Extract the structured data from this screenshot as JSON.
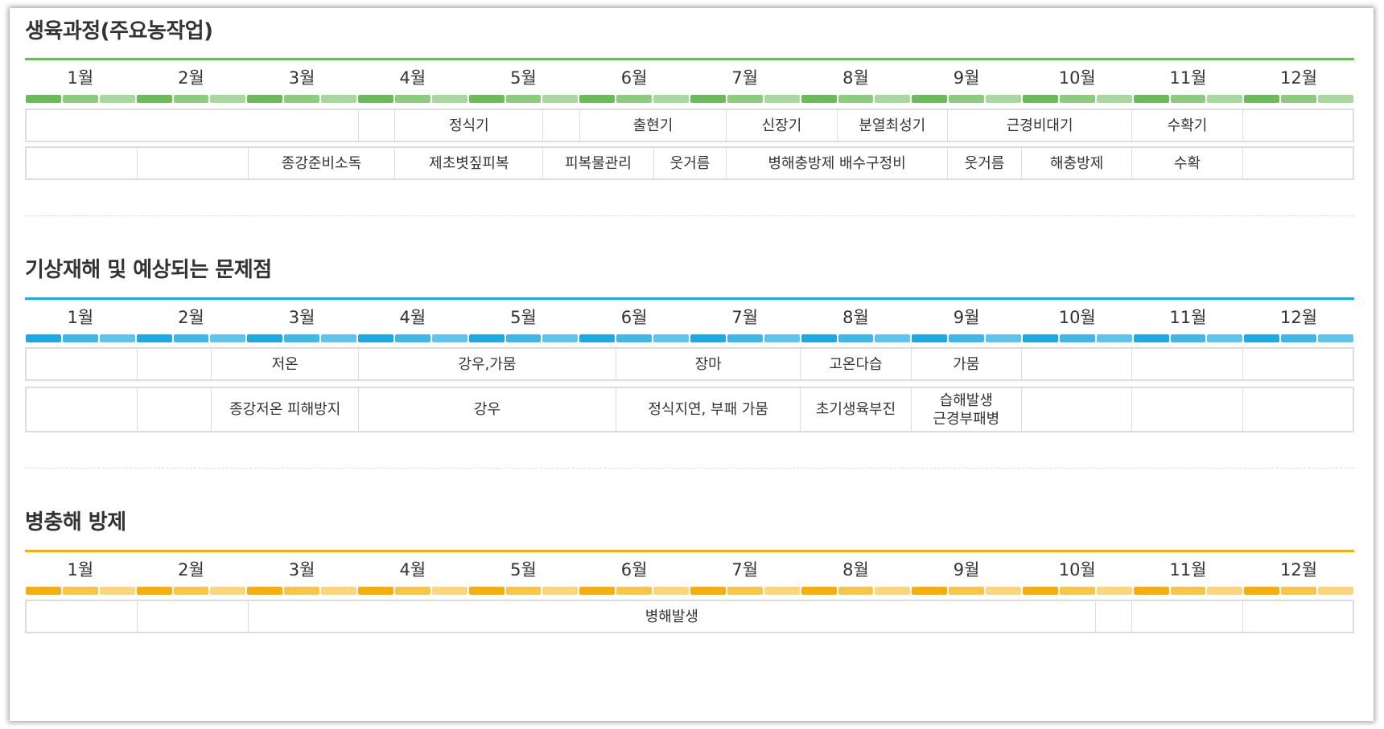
{
  "months": [
    "1월",
    "2월",
    "3월",
    "4월",
    "5월",
    "6월",
    "7월",
    "8월",
    "9월",
    "10월",
    "11월",
    "12월"
  ],
  "sections": [
    {
      "title": "생육과정(주요농작업)",
      "colors": {
        "rule": "#6cbb5a",
        "dark": "#6cbb5a",
        "mid": "#8dcc7e",
        "light": "#a9d89c"
      },
      "rows": [
        [
          {
            "span": [
              0,
              3
            ],
            "text": ""
          },
          {
            "span": [
              3,
              3.33
            ],
            "text": ""
          },
          {
            "span": [
              3.33,
              4.67
            ],
            "text": "정식기"
          },
          {
            "span": [
              4.67,
              5
            ],
            "text": ""
          },
          {
            "span": [
              5,
              6.33
            ],
            "text": "출현기"
          },
          {
            "span": [
              6.33,
              7.33
            ],
            "text": "신장기"
          },
          {
            "span": [
              7.33,
              8.33
            ],
            "text": "분열최성기"
          },
          {
            "span": [
              8.33,
              10
            ],
            "text": "근경비대기"
          },
          {
            "span": [
              10,
              11
            ],
            "text": "수확기"
          },
          {
            "span": [
              11,
              12
            ],
            "text": ""
          }
        ],
        [
          {
            "span": [
              0,
              1
            ],
            "text": ""
          },
          {
            "span": [
              1,
              2
            ],
            "text": ""
          },
          {
            "span": [
              2,
              3.33
            ],
            "text": "종강준비소독"
          },
          {
            "span": [
              3.33,
              4.67
            ],
            "text": "제초볏짚피복"
          },
          {
            "span": [
              4.67,
              5.67
            ],
            "text": "피복물관리"
          },
          {
            "span": [
              5.67,
              6.33
            ],
            "text": "웃거름"
          },
          {
            "span": [
              6.33,
              8.33
            ],
            "text": "병해충방제 배수구정비"
          },
          {
            "span": [
              8.33,
              9
            ],
            "text": "웃거름"
          },
          {
            "span": [
              9,
              10
            ],
            "text": "해충방제"
          },
          {
            "span": [
              10,
              11
            ],
            "text": "수확"
          },
          {
            "span": [
              11,
              12
            ],
            "text": ""
          }
        ]
      ]
    },
    {
      "title": "기상재해 및 예상되는 문제점",
      "colors": {
        "rule": "#1ea9e1",
        "dark": "#1ea9e1",
        "mid": "#40b7e6",
        "light": "#5fc4ec"
      },
      "rows": [
        [
          {
            "span": [
              0,
              1
            ],
            "text": ""
          },
          {
            "span": [
              1,
              1.67
            ],
            "text": ""
          },
          {
            "span": [
              1.67,
              3
            ],
            "text": "저온"
          },
          {
            "span": [
              3,
              5.33
            ],
            "text": "강우,가뭄"
          },
          {
            "span": [
              5.33,
              7
            ],
            "text": "장마"
          },
          {
            "span": [
              7,
              8
            ],
            "text": "고온다습"
          },
          {
            "span": [
              8,
              9
            ],
            "text": "가뭄"
          },
          {
            "span": [
              9,
              10
            ],
            "text": ""
          },
          {
            "span": [
              10,
              11
            ],
            "text": ""
          },
          {
            "span": [
              11,
              12
            ],
            "text": ""
          }
        ],
        [
          {
            "span": [
              0,
              1
            ],
            "text": ""
          },
          {
            "span": [
              1,
              1.67
            ],
            "text": ""
          },
          {
            "span": [
              1.67,
              3
            ],
            "text": "종강저온 피해방지"
          },
          {
            "span": [
              3,
              5.33
            ],
            "text": "강우"
          },
          {
            "span": [
              5.33,
              7
            ],
            "text": "정식지연, 부패 가뭄"
          },
          {
            "span": [
              7,
              8
            ],
            "text": "초기생육부진"
          },
          {
            "span": [
              8,
              9
            ],
            "text": "습해발생\n근경부패병"
          },
          {
            "span": [
              9,
              10
            ],
            "text": ""
          },
          {
            "span": [
              10,
              11
            ],
            "text": ""
          },
          {
            "span": [
              11,
              12
            ],
            "text": ""
          }
        ]
      ]
    },
    {
      "title": "병충해 방제",
      "colors": {
        "rule": "#f5ae12",
        "dark": "#f7ad0c",
        "mid": "#f9c548",
        "light": "#fbd67c"
      },
      "rows": [
        [
          {
            "span": [
              0,
              1
            ],
            "text": ""
          },
          {
            "span": [
              1,
              2
            ],
            "text": ""
          },
          {
            "span": [
              2,
              9.67
            ],
            "text": "병해발생"
          },
          {
            "span": [
              9.67,
              10
            ],
            "text": ""
          },
          {
            "span": [
              10,
              11
            ],
            "text": ""
          },
          {
            "span": [
              11,
              12
            ],
            "text": ""
          }
        ]
      ]
    }
  ]
}
